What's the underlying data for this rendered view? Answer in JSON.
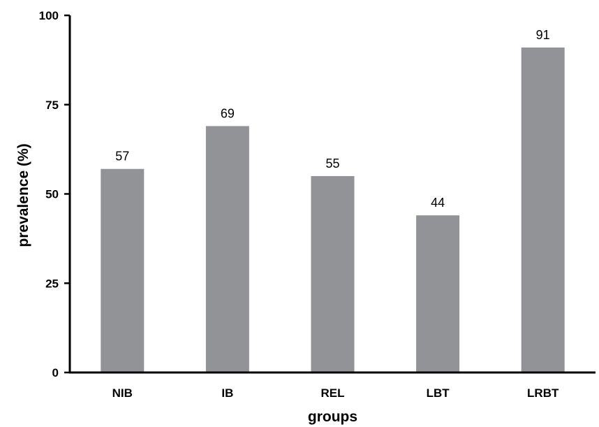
{
  "chart_data": {
    "type": "bar",
    "categories": [
      "NIB",
      "IB",
      "REL",
      "LBT",
      "LRBT"
    ],
    "values": [
      57,
      69,
      55,
      44,
      91
    ],
    "data_labels": [
      "57",
      "69",
      "55",
      "44",
      "91"
    ],
    "title": "",
    "xlabel": "groups",
    "ylabel": "prevalence (%)",
    "ylim": [
      0,
      100
    ],
    "yticks": [
      0,
      25,
      50,
      75,
      100
    ],
    "grid": false,
    "legend": "none",
    "bar_color": "#929396",
    "axis_color": "#000000"
  }
}
